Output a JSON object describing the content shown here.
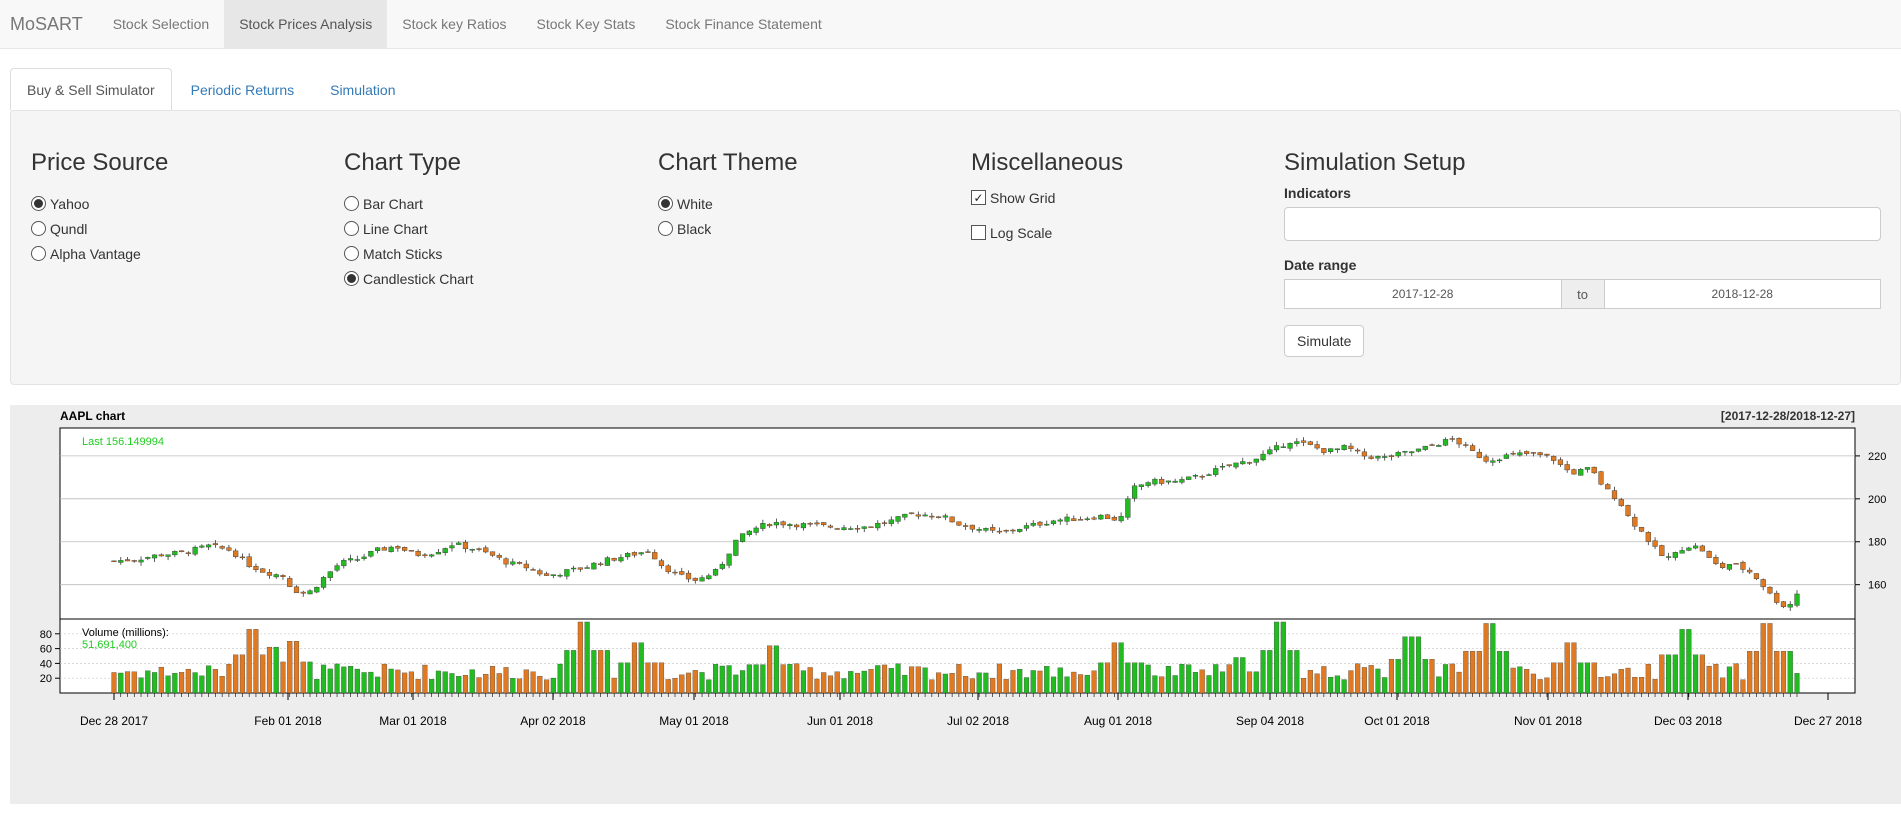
{
  "app": {
    "brand": "MoSART"
  },
  "navbar": {
    "items": [
      "Stock Selection",
      "Stock Prices Analysis",
      "Stock key Ratios",
      "Stock Key Stats",
      "Stock Finance Statement"
    ],
    "active_index": 1
  },
  "tabs": {
    "items": [
      "Buy & Sell Simulator",
      "Periodic Returns",
      "Simulation"
    ],
    "active_index": 0
  },
  "price_source": {
    "title": "Price Source",
    "options": [
      "Yahoo",
      "Qundl",
      "Alpha Vantage"
    ],
    "selected": "Yahoo"
  },
  "chart_type": {
    "title": "Chart Type",
    "options": [
      "Bar Chart",
      "Line Chart",
      "Match Sticks",
      "Candlestick Chart"
    ],
    "selected": "Candlestick Chart"
  },
  "chart_theme": {
    "title": "Chart Theme",
    "options": [
      "White",
      "Black"
    ],
    "selected": "White"
  },
  "misc": {
    "title": "Miscellaneous",
    "show_grid_label": "Show Grid",
    "show_grid": true,
    "log_scale_label": "Log Scale",
    "log_scale": false
  },
  "simulation": {
    "title": "Simulation Setup",
    "indicators_label": "Indicators",
    "indicators_value": "",
    "date_range_label": "Date range",
    "date_start": "2017-12-28",
    "date_sep": "to",
    "date_end": "2018-12-28",
    "simulate_label": "Simulate"
  },
  "chart": {
    "title": "AAPL chart",
    "range": "[2017-12-28/2018-12-27]",
    "last_label": "Last 156.149994",
    "volume_label": "Volume (millions):",
    "volume_value": "51,691,400",
    "up_color": "#22bb22",
    "down_color": "#e07a22",
    "last_color": "#22cc22"
  },
  "chart_data": {
    "type": "candlestick",
    "title": "AAPL chart",
    "subtitle": "[2017-12-28/2018-12-27]",
    "x_tick_labels": [
      "Dec 28 2017",
      "Feb 01 2018",
      "Mar 01 2018",
      "Apr 02 2018",
      "May 01 2018",
      "Jun 01 2018",
      "Jul 02 2018",
      "Aug 01 2018",
      "Sep 04 2018",
      "Oct 01 2018",
      "Nov 01 2018",
      "Dec 03 2018",
      "Dec 27 2018"
    ],
    "price_ticks": [
      160,
      180,
      200,
      220
    ],
    "price_ylim": [
      144,
      233
    ],
    "volume_ticks": [
      20,
      40,
      60,
      80
    ],
    "volume_ylim": [
      0,
      100
    ],
    "grid": true,
    "price_path": [
      [
        0,
        171
      ],
      [
        5,
        172
      ],
      [
        10,
        174
      ],
      [
        15,
        175
      ],
      [
        20,
        178
      ],
      [
        25,
        176
      ],
      [
        28,
        170
      ],
      [
        32,
        166
      ],
      [
        36,
        164
      ],
      [
        38,
        158
      ],
      [
        40,
        156
      ],
      [
        42,
        157
      ],
      [
        44,
        162
      ],
      [
        48,
        170
      ],
      [
        52,
        172
      ],
      [
        56,
        176
      ],
      [
        60,
        178
      ],
      [
        64,
        174
      ],
      [
        68,
        175
      ],
      [
        72,
        179
      ],
      [
        76,
        177
      ],
      [
        80,
        174
      ],
      [
        84,
        170
      ],
      [
        88,
        168
      ],
      [
        92,
        164
      ],
      [
        96,
        166
      ],
      [
        100,
        168
      ],
      [
        104,
        171
      ],
      [
        110,
        174
      ],
      [
        114,
        176
      ],
      [
        116,
        170
      ],
      [
        120,
        164
      ],
      [
        124,
        162
      ],
      [
        126,
        164
      ],
      [
        128,
        166
      ],
      [
        130,
        172
      ],
      [
        132,
        180
      ],
      [
        136,
        186
      ],
      [
        140,
        189
      ],
      [
        146,
        188
      ],
      [
        152,
        187
      ],
      [
        160,
        187
      ],
      [
        166,
        190
      ],
      [
        170,
        193
      ],
      [
        176,
        192
      ],
      [
        180,
        188
      ],
      [
        184,
        186
      ],
      [
        188,
        184
      ],
      [
        192,
        186
      ],
      [
        196,
        188
      ],
      [
        200,
        190
      ],
      [
        206,
        191
      ],
      [
        210,
        192
      ],
      [
        214,
        190
      ],
      [
        215,
        196
      ],
      [
        217,
        205
      ],
      [
        220,
        208
      ],
      [
        226,
        208
      ],
      [
        230,
        210
      ],
      [
        234,
        213
      ],
      [
        238,
        216
      ],
      [
        242,
        218
      ],
      [
        246,
        222
      ],
      [
        250,
        227
      ],
      [
        254,
        225
      ],
      [
        258,
        222
      ],
      [
        262,
        224
      ],
      [
        266,
        220
      ],
      [
        270,
        219
      ],
      [
        274,
        221
      ],
      [
        278,
        223
      ],
      [
        282,
        226
      ],
      [
        285,
        228
      ],
      [
        288,
        223
      ],
      [
        292,
        218
      ],
      [
        296,
        220
      ],
      [
        300,
        221
      ],
      [
        304,
        220
      ],
      [
        306,
        219
      ],
      [
        308,
        215
      ],
      [
        310,
        212
      ],
      [
        314,
        214
      ],
      [
        316,
        208
      ],
      [
        318,
        203
      ],
      [
        320,
        200
      ],
      [
        322,
        192
      ],
      [
        324,
        187
      ],
      [
        326,
        182
      ],
      [
        328,
        176
      ],
      [
        330,
        172
      ],
      [
        332,
        174
      ],
      [
        334,
        178
      ],
      [
        336,
        178
      ],
      [
        338,
        176
      ],
      [
        340,
        170
      ],
      [
        342,
        168
      ],
      [
        344,
        170
      ],
      [
        346,
        168
      ],
      [
        348,
        166
      ],
      [
        350,
        162
      ],
      [
        352,
        156
      ],
      [
        354,
        152
      ],
      [
        356,
        149
      ],
      [
        358,
        156
      ]
    ],
    "volume_spikes": [
      [
        30,
        86
      ],
      [
        34,
        62
      ],
      [
        38,
        70
      ],
      [
        100,
        96
      ],
      [
        112,
        68
      ],
      [
        140,
        64
      ],
      [
        214,
        68
      ],
      [
        240,
        48
      ],
      [
        248,
        96
      ],
      [
        276,
        76
      ],
      [
        292,
        94
      ],
      [
        310,
        68
      ],
      [
        334,
        86
      ],
      [
        352,
        94
      ]
    ],
    "last_price": 156.149994,
    "last_volume": 51691400
  }
}
